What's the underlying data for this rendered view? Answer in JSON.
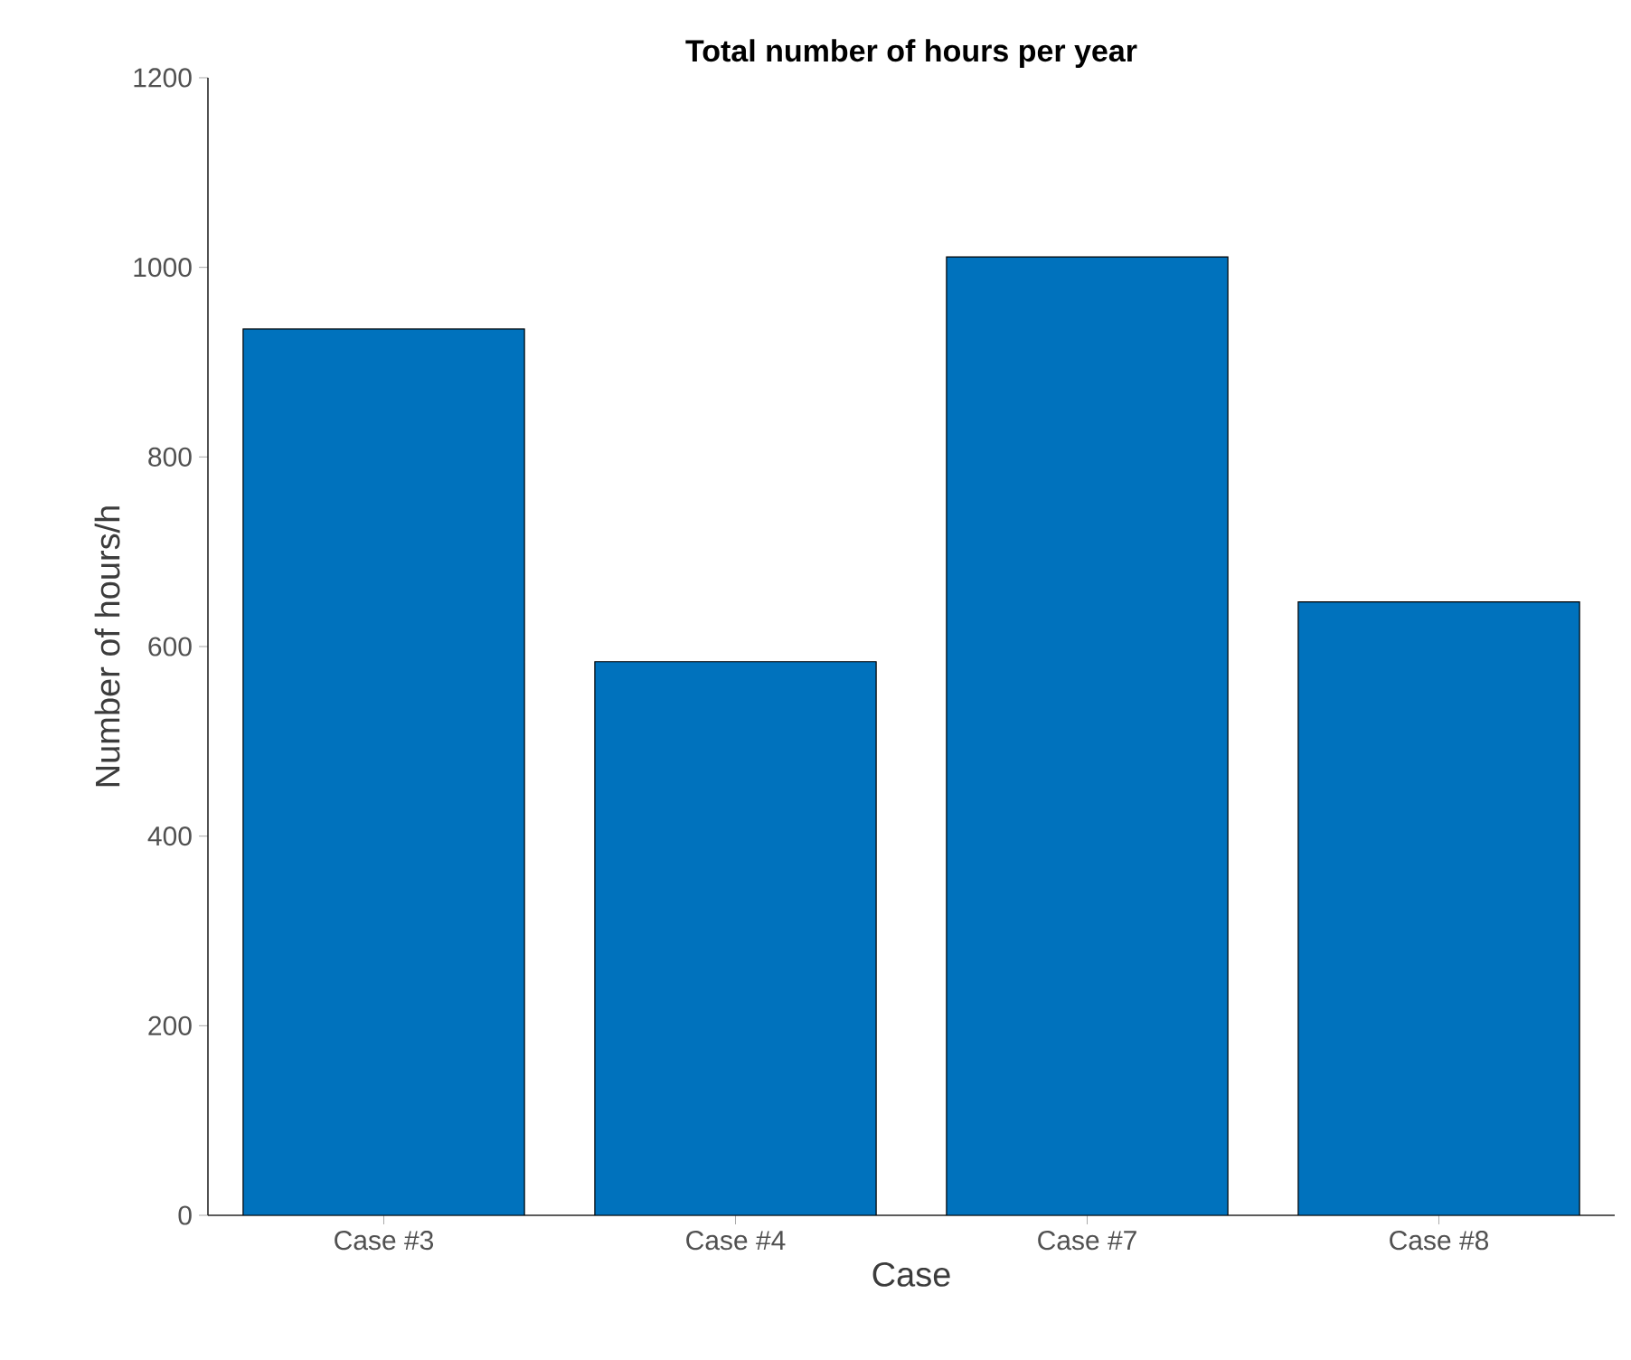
{
  "chart_data": {
    "type": "bar",
    "title": "Total number of hours per year",
    "xlabel": "Case",
    "ylabel": "Number of hours/h",
    "categories": [
      "Case #3",
      "Case #4",
      "Case #7",
      "Case #8"
    ],
    "values": [
      935,
      584,
      1011,
      647
    ],
    "color": "#0072bd",
    "ylim": [
      0,
      1200
    ],
    "yticks": [
      0,
      200,
      400,
      600,
      800,
      1000,
      1200
    ]
  }
}
